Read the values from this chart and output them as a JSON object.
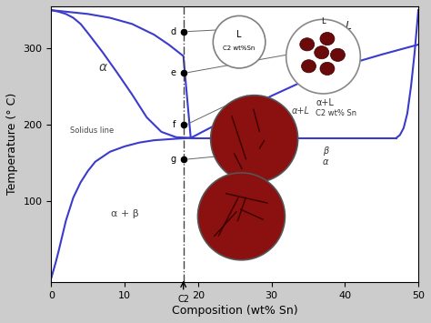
{
  "title": "",
  "xlabel": "Composition (wt% Sn)",
  "ylabel": "Temperature (° C)",
  "xlim": [
    0,
    50
  ],
  "ylim": [
    0,
    350
  ],
  "xticks": [
    0,
    10,
    20,
    30,
    40,
    50
  ],
  "yticks": [
    100,
    200,
    300
  ],
  "C2": 18,
  "solidus_temp": 183,
  "alpha_solvus_x": [
    0,
    1,
    2,
    3,
    4,
    5,
    7,
    9,
    11,
    13,
    15,
    17,
    19
  ],
  "alpha_solvus_y": [
    350,
    348,
    345,
    340,
    332,
    320,
    295,
    268,
    240,
    210,
    191,
    184,
    183
  ],
  "alpha_lowT_x": [
    0,
    0.3,
    0.6,
    1.0,
    1.5,
    2.0,
    3.0,
    4.0,
    5.0,
    6.0,
    8.0,
    10.0,
    12.0,
    14.0,
    17.0,
    19.0
  ],
  "alpha_lowT_y": [
    0,
    10,
    20,
    35,
    55,
    75,
    105,
    125,
    140,
    152,
    165,
    172,
    177,
    180,
    182,
    183
  ],
  "liquidus_left_x": [
    0,
    2,
    5,
    8,
    11,
    14,
    16,
    18,
    19
  ],
  "liquidus_left_y": [
    350,
    348,
    345,
    340,
    332,
    318,
    305,
    290,
    183
  ],
  "liquidus_right_x": [
    19,
    22,
    26,
    30,
    35,
    40,
    45,
    50
  ],
  "liquidus_right_y": [
    183,
    198,
    218,
    238,
    260,
    278,
    292,
    305
  ],
  "beta_solvus_x": [
    50,
    49.5,
    49,
    48.5,
    48,
    47.5,
    47
  ],
  "beta_solvus_y": [
    350,
    295,
    250,
    215,
    196,
    187,
    183
  ],
  "line_color": "#3b3bcc",
  "dashed_line_color": "#444444",
  "point_d_temp": 322,
  "point_e_temp": 268,
  "point_f_temp": 200,
  "point_g_temp": 155,
  "region_alpha": "α",
  "region_alpha_L": "α+L",
  "region_alpha_beta": "α + β",
  "region_L": "L",
  "region_beta": "β",
  "region_alpha2": "α",
  "solidus_label": "Solidus line",
  "C2_label": "C2",
  "fig_bg": "#cccccc",
  "plot_bg": "#ffffff"
}
